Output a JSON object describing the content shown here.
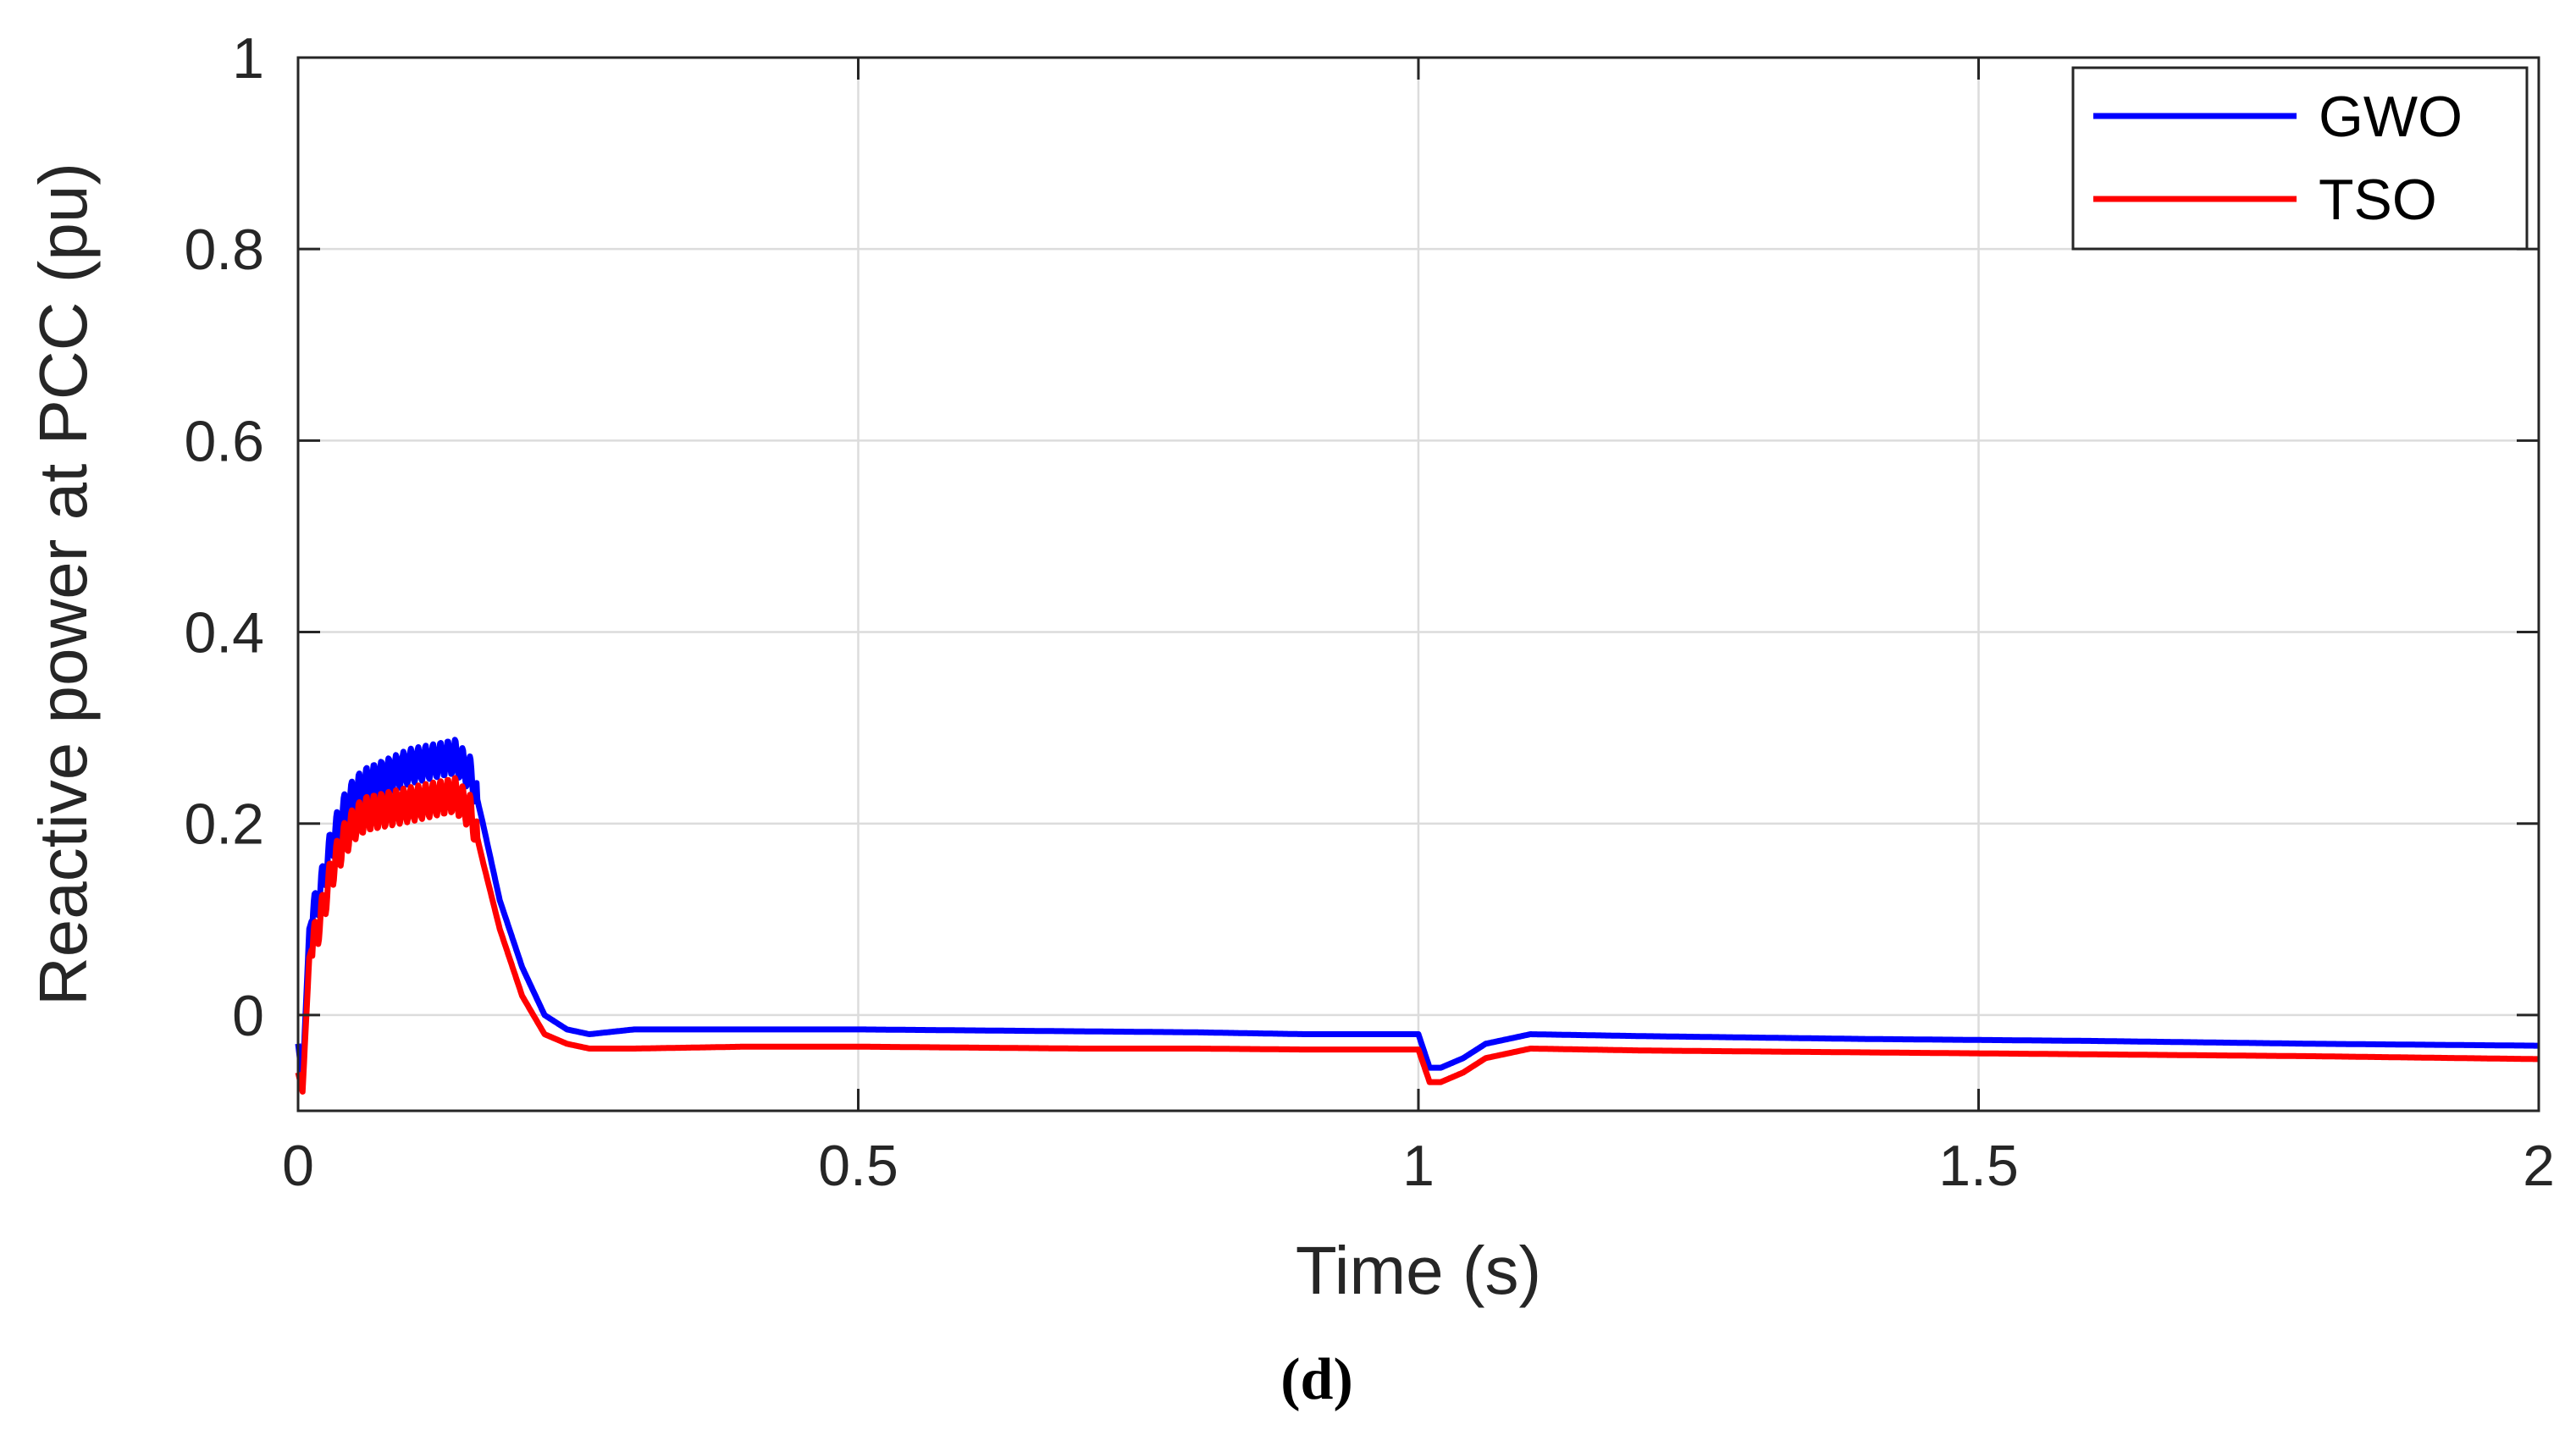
{
  "chart_data": {
    "type": "line",
    "title": "",
    "xlabel": "Time (s)",
    "ylabel": "Reactive power at PCC (pu)",
    "caption": "(d)",
    "xlim": [
      0,
      2
    ],
    "ylim": [
      -0.1,
      1
    ],
    "xticks": [
      0,
      0.5,
      1,
      1.5,
      2
    ],
    "xtick_labels": [
      "0",
      "0.5",
      "1",
      "1.5",
      "2"
    ],
    "yticks": [
      0,
      0.2,
      0.4,
      0.6,
      0.8,
      1
    ],
    "ytick_labels": [
      "0",
      "0.2",
      "0.4",
      "0.6",
      "0.8",
      "1"
    ],
    "grid": true,
    "legend_position": "top-right",
    "series": [
      {
        "name": "GWO",
        "color": "#0000ff",
        "x": [
          0,
          0.004,
          0.01,
          0.02,
          0.03,
          0.04,
          0.05,
          0.06,
          0.08,
          0.1,
          0.12,
          0.14,
          0.155,
          0.165,
          0.18,
          0.2,
          0.22,
          0.24,
          0.26,
          0.3,
          0.4,
          0.5,
          0.6,
          0.7,
          0.8,
          0.9,
          0.99,
          1.0,
          1.01,
          1.02,
          1.04,
          1.06,
          1.1,
          1.2,
          1.4,
          1.6,
          1.8,
          2.0
        ],
        "y": [
          -0.03,
          -0.07,
          0.09,
          0.13,
          0.18,
          0.21,
          0.23,
          0.24,
          0.25,
          0.26,
          0.265,
          0.27,
          0.25,
          0.2,
          0.12,
          0.05,
          0.0,
          -0.015,
          -0.02,
          -0.015,
          -0.015,
          -0.015,
          -0.016,
          -0.017,
          -0.018,
          -0.02,
          -0.02,
          -0.02,
          -0.055,
          -0.055,
          -0.045,
          -0.03,
          -0.02,
          -0.022,
          -0.025,
          -0.027,
          -0.03,
          -0.032
        ]
      },
      {
        "name": "TSO",
        "color": "#ff0000",
        "x": [
          0,
          0.004,
          0.01,
          0.02,
          0.03,
          0.04,
          0.05,
          0.06,
          0.08,
          0.1,
          0.12,
          0.14,
          0.155,
          0.165,
          0.18,
          0.2,
          0.22,
          0.24,
          0.26,
          0.3,
          0.4,
          0.5,
          0.6,
          0.7,
          0.8,
          0.9,
          0.99,
          1.0,
          1.01,
          1.02,
          1.04,
          1.06,
          1.1,
          1.2,
          1.4,
          1.6,
          1.8,
          2.0
        ],
        "y": [
          -0.06,
          -0.08,
          0.06,
          0.1,
          0.15,
          0.18,
          0.2,
          0.21,
          0.215,
          0.22,
          0.225,
          0.23,
          0.21,
          0.16,
          0.09,
          0.02,
          -0.02,
          -0.03,
          -0.035,
          -0.035,
          -0.033,
          -0.033,
          -0.034,
          -0.035,
          -0.035,
          -0.036,
          -0.036,
          -0.036,
          -0.07,
          -0.07,
          -0.06,
          -0.045,
          -0.035,
          -0.037,
          -0.039,
          -0.041,
          -0.043,
          -0.046
        ]
      }
    ]
  }
}
